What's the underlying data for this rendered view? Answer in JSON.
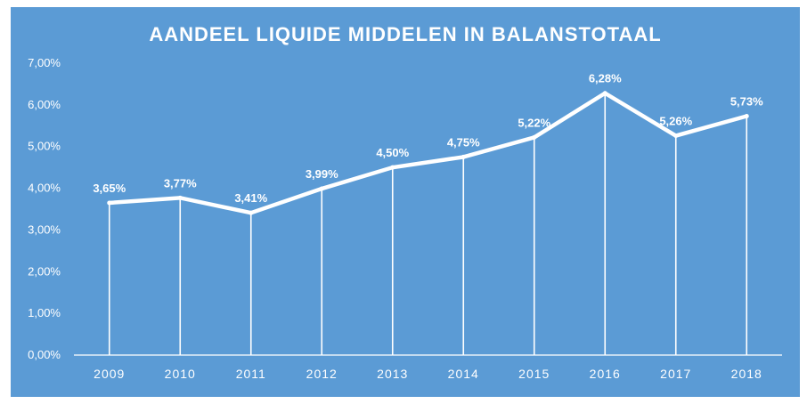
{
  "chart_data": {
    "type": "line",
    "title": "AANDEEL LIQUIDE MIDDELEN IN BALANSTOTAAL",
    "categories": [
      "2009",
      "2010",
      "2011",
      "2012",
      "2013",
      "2014",
      "2015",
      "2016",
      "2017",
      "2018"
    ],
    "values": [
      3.65,
      3.77,
      3.41,
      3.99,
      4.5,
      4.75,
      5.22,
      6.28,
      5.26,
      5.73
    ],
    "data_labels": [
      "3,65%",
      "3,77%",
      "3,41%",
      "3,99%",
      "4,50%",
      "4,75%",
      "5,22%",
      "6,28%",
      "5,26%",
      "5,73%"
    ],
    "y_ticks": [
      0,
      1,
      2,
      3,
      4,
      5,
      6,
      7
    ],
    "y_tick_labels": [
      "0,00%",
      "1,00%",
      "2,00%",
      "3,00%",
      "4,00%",
      "5,00%",
      "6,00%",
      "7,00%"
    ],
    "ylim": [
      0,
      7
    ],
    "drop_lines": true,
    "grid": false,
    "legend": false,
    "colors": {
      "background": "#5b9bd5",
      "line": "#ffffff",
      "text": "#ffffff"
    }
  }
}
